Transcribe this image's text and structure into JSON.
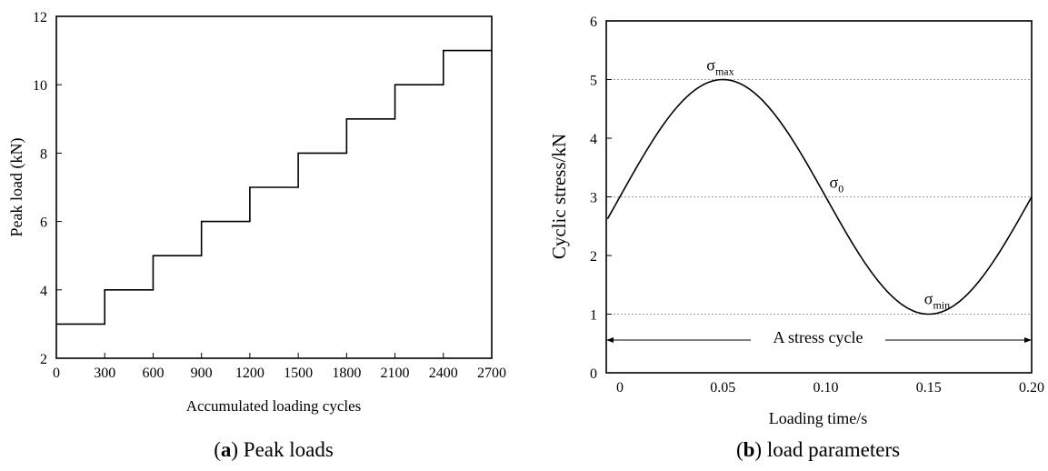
{
  "chart_data": [
    {
      "type": "line",
      "subtype": "step",
      "xlabel": "Accumulated loading cycles",
      "ylabel": "Peak load (kN)",
      "xlim": [
        0,
        2700
      ],
      "ylim": [
        2,
        12
      ],
      "xticks": [
        0,
        300,
        600,
        900,
        1200,
        1500,
        1800,
        2100,
        2400,
        2700
      ],
      "yticks": [
        2,
        4,
        6,
        8,
        10,
        12
      ],
      "steps": [
        {
          "x_start": 0,
          "x_end": 300,
          "y": 3
        },
        {
          "x_start": 300,
          "x_end": 600,
          "y": 4
        },
        {
          "x_start": 600,
          "x_end": 900,
          "y": 5
        },
        {
          "x_start": 900,
          "x_end": 1200,
          "y": 6
        },
        {
          "x_start": 1200,
          "x_end": 1500,
          "y": 7
        },
        {
          "x_start": 1500,
          "x_end": 1800,
          "y": 8
        },
        {
          "x_start": 1800,
          "x_end": 2100,
          "y": 9
        },
        {
          "x_start": 2100,
          "x_end": 2400,
          "y": 10
        },
        {
          "x_start": 2400,
          "x_end": 2700,
          "y": 11
        }
      ],
      "caption": {
        "letter": "a",
        "text": "Peak loads"
      }
    },
    {
      "type": "line",
      "subtype": "sine",
      "xlabel": "Loading time/s",
      "ylabel": "Cyclic stress/kN",
      "xlim": [
        0,
        0.2
      ],
      "ylim": [
        0,
        6
      ],
      "xticks": [
        "0",
        "0.05",
        "0.10",
        "0.15",
        "0.20"
      ],
      "xtick_values": [
        0,
        0.05,
        0.1,
        0.15,
        0.2
      ],
      "yticks": [
        0,
        1,
        2,
        3,
        4,
        5,
        6
      ],
      "mean": 3,
      "amplitude": 2,
      "period": 0.2,
      "reference_lines": [
        5,
        3,
        1
      ],
      "annotations": [
        {
          "symbol": "σ",
          "sub": "max",
          "x": 0.05,
          "y": 5
        },
        {
          "symbol": "σ",
          "sub": "0",
          "x": 0.1,
          "y": 3
        },
        {
          "symbol": "σ",
          "sub": "min",
          "x": 0.15,
          "y": 1
        }
      ],
      "span_label": "A stress cycle",
      "caption": {
        "letter": "b",
        "text": "load parameters"
      }
    }
  ]
}
